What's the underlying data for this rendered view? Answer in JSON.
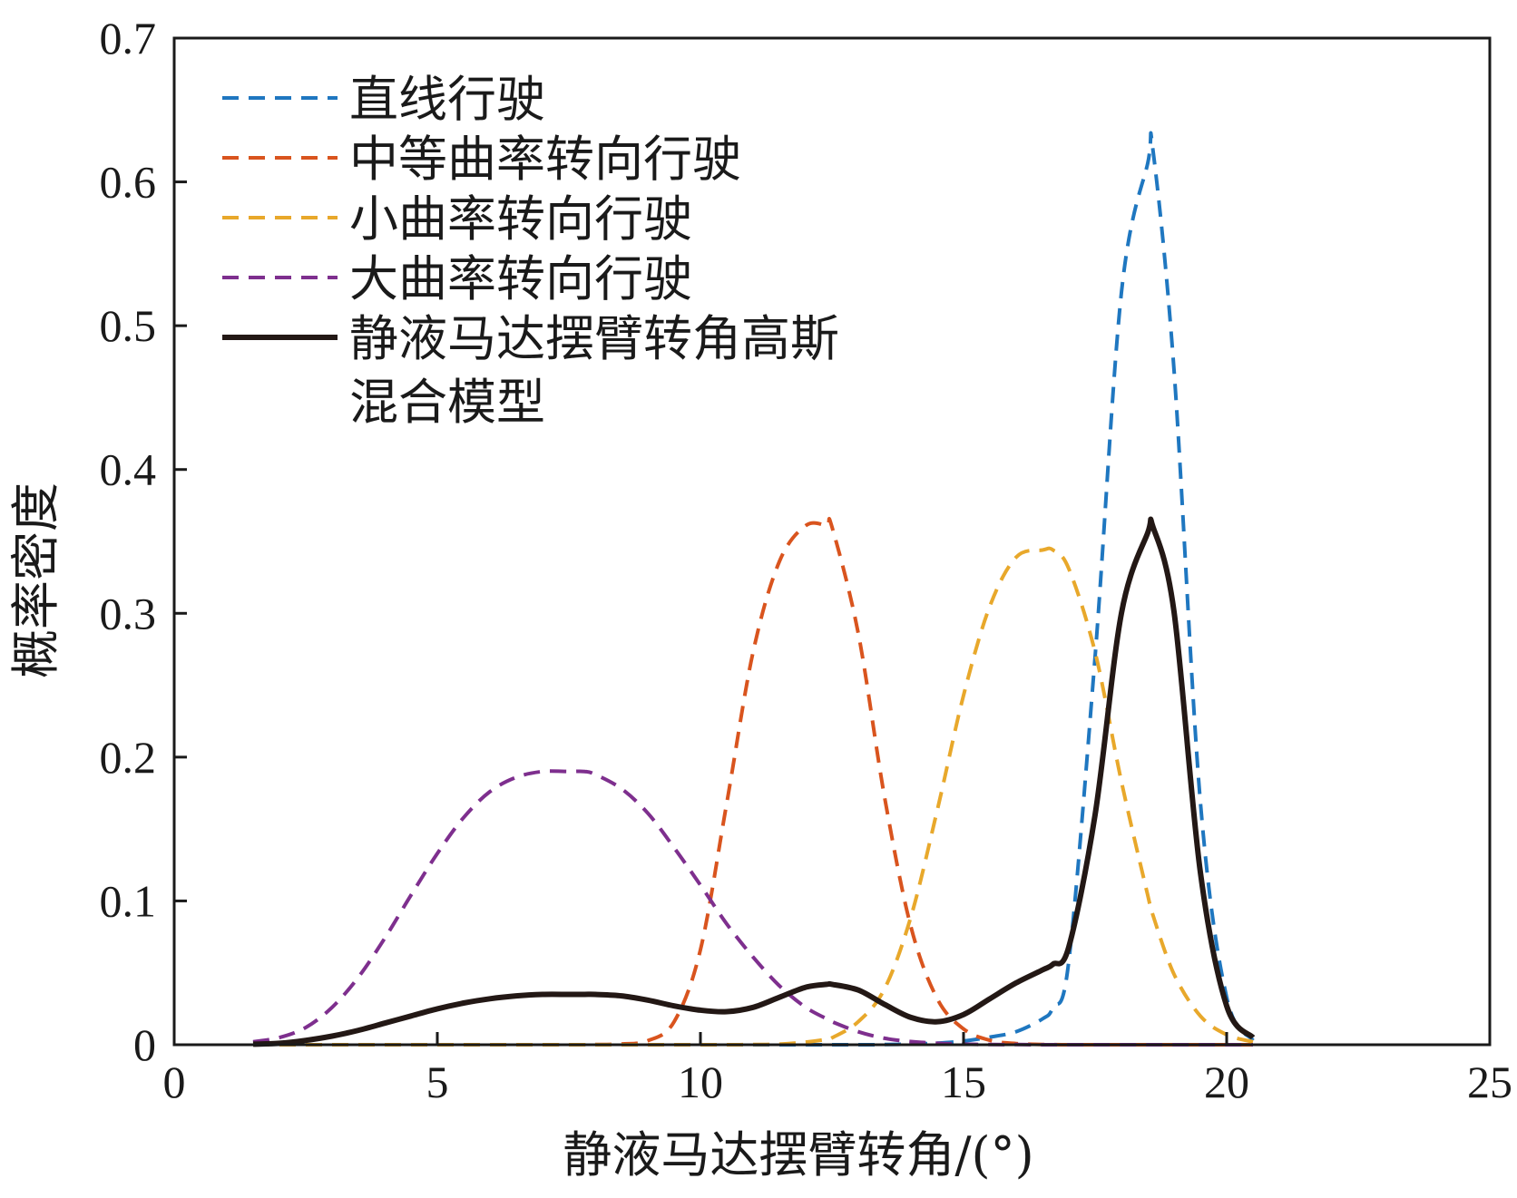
{
  "chart_data": {
    "type": "line",
    "xlabel": "静液马达摆臂转角/(°)",
    "ylabel": "概率密度",
    "xlim": [
      0,
      25
    ],
    "ylim": [
      0,
      0.7
    ],
    "xticks": [
      0,
      5,
      10,
      15,
      20,
      25
    ],
    "xtick_labels": [
      "0",
      "5",
      "10",
      "15",
      "20",
      "25"
    ],
    "yticks": [
      0,
      0.1,
      0.2,
      0.3,
      0.4,
      0.5,
      0.6,
      0.7
    ],
    "ytick_labels": [
      "0",
      "0.1",
      "0.2",
      "0.3",
      "0.4",
      "0.5",
      "0.6",
      "0.7"
    ],
    "grid": false,
    "legend_position": "top-left",
    "x": [
      1.5,
      2,
      2.5,
      3,
      3.5,
      4,
      4.5,
      5,
      5.5,
      6,
      6.5,
      7,
      7.5,
      7.8,
      8,
      8.5,
      9,
      9.5,
      10,
      10.5,
      11,
      11.5,
      12,
      12.4,
      12.5,
      13,
      13.5,
      14,
      14.5,
      15,
      15.5,
      16,
      16.5,
      16.7,
      17,
      17.5,
      18,
      18.5,
      18.6,
      19,
      19.5,
      20,
      20.5
    ],
    "series": [
      {
        "name": "直线行驶",
        "style": "dashed",
        "color": "#1f77c0",
        "values": [
          0,
          0,
          0,
          0,
          0,
          0,
          0,
          0,
          0,
          0,
          0,
          0,
          0,
          0,
          0,
          0,
          0,
          0,
          0,
          0,
          0,
          0,
          0,
          0,
          0,
          0,
          0.0001,
          0.0005,
          0.0011,
          0.0026,
          0.0053,
          0.0091,
          0.018,
          0.026,
          0.058,
          0.27,
          0.523,
          0.613,
          0.622,
          0.469,
          0.169,
          0.033,
          0.003
        ]
      },
      {
        "name": "中等曲率转向行驶",
        "style": "dashed",
        "color": "#d9541e",
        "values": [
          0,
          0,
          0,
          0,
          0,
          0,
          0,
          0,
          0,
          0,
          0,
          0,
          0,
          0,
          0.0001,
          0.0005,
          0.0028,
          0.016,
          0.066,
          0.168,
          0.273,
          0.336,
          0.361,
          0.361,
          0.36,
          0.286,
          0.172,
          0.082,
          0.032,
          0.011,
          0.0031,
          0.0008,
          0.0002,
          0.0001,
          0,
          0,
          0,
          0,
          0,
          0,
          0,
          0,
          0
        ]
      },
      {
        "name": "小曲率转向行驶",
        "style": "dashed",
        "color": "#e8a82b",
        "values": [
          0,
          0,
          0,
          0,
          0,
          0,
          0,
          0,
          0,
          0,
          0,
          0,
          0,
          0,
          0,
          0,
          0,
          0,
          0,
          0,
          0.0001,
          0.0004,
          0.0018,
          0.0038,
          0.0048,
          0.016,
          0.039,
          0.089,
          0.163,
          0.243,
          0.305,
          0.339,
          0.344,
          0.344,
          0.331,
          0.273,
          0.183,
          0.104,
          0.09,
          0.049,
          0.02,
          0.007,
          0.002
        ]
      },
      {
        "name": "大曲率转向行驶",
        "style": "dashed",
        "color": "#7e2f8e",
        "values": [
          0.002,
          0.005,
          0.012,
          0.026,
          0.047,
          0.074,
          0.104,
          0.133,
          0.158,
          0.176,
          0.186,
          0.19,
          0.19,
          0.19,
          0.188,
          0.178,
          0.161,
          0.137,
          0.111,
          0.084,
          0.061,
          0.041,
          0.026,
          0.018,
          0.016,
          0.009,
          0.0045,
          0.0022,
          0.001,
          0.0004,
          0.0001,
          0.0001,
          0,
          0,
          0,
          0,
          0,
          0,
          0,
          0,
          0,
          0,
          0
        ]
      },
      {
        "name": "静液马达摆臂转角高斯混合模型",
        "style": "solid",
        "color": "#231815",
        "values": [
          0.0004,
          0.001,
          0.003,
          0.006,
          0.01,
          0.015,
          0.02,
          0.025,
          0.029,
          0.032,
          0.034,
          0.035,
          0.035,
          0.035,
          0.035,
          0.034,
          0.031,
          0.027,
          0.024,
          0.023,
          0.026,
          0.033,
          0.04,
          0.042,
          0.042,
          0.038,
          0.028,
          0.019,
          0.016,
          0.021,
          0.032,
          0.043,
          0.052,
          0.056,
          0.068,
          0.16,
          0.3,
          0.356,
          0.36,
          0.301,
          0.12,
          0.027,
          0.005
        ]
      }
    ]
  }
}
